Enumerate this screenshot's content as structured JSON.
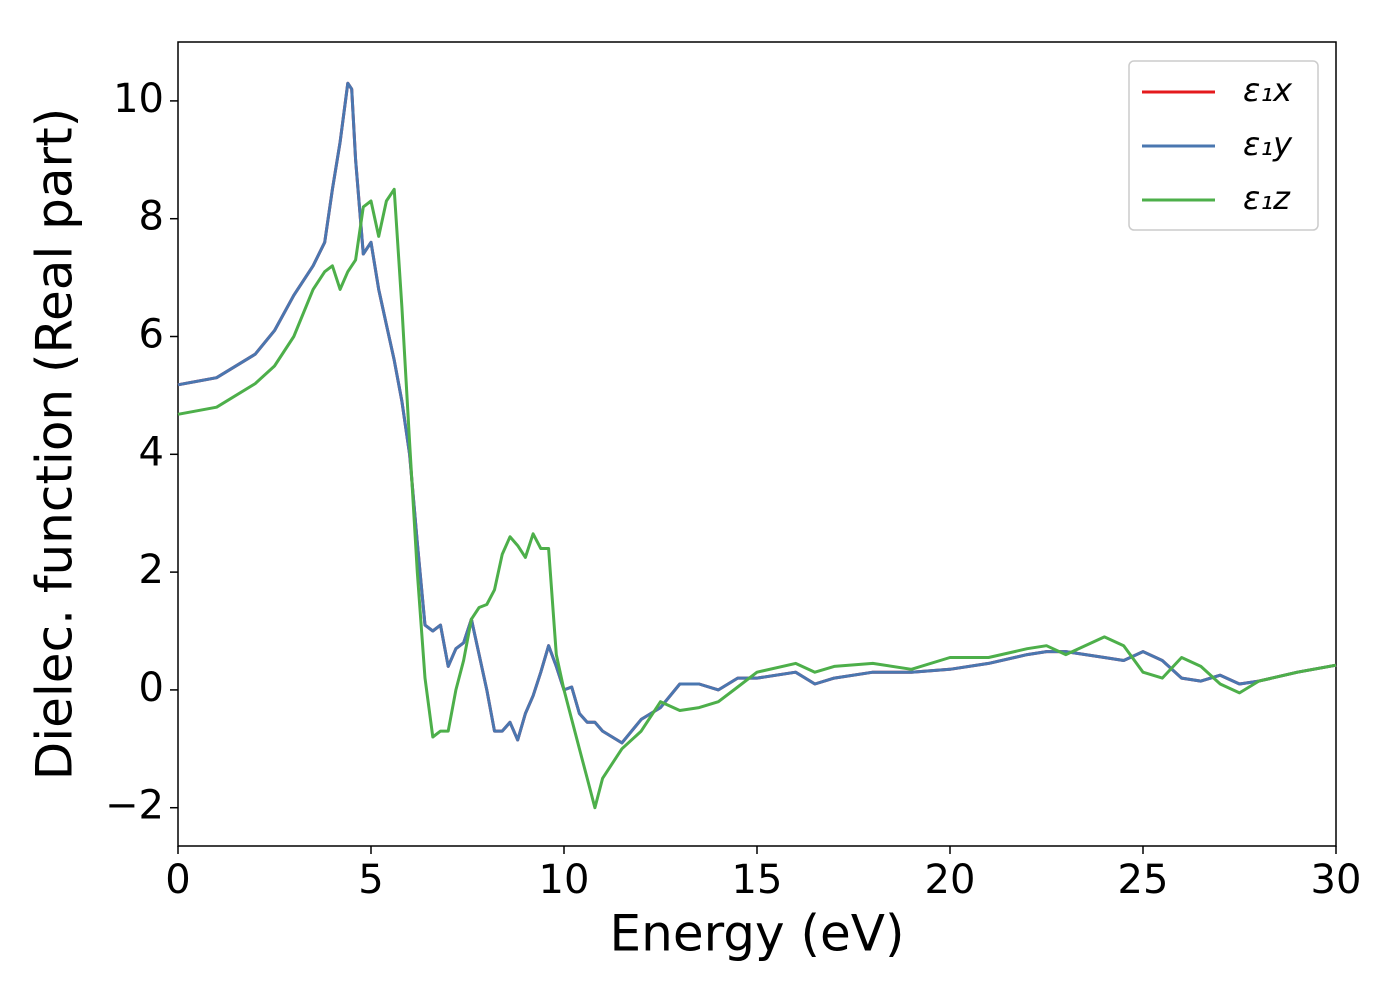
{
  "chart_data": {
    "type": "line",
    "xlabel": "Energy (eV)",
    "ylabel": "Dielec. function (Real part)",
    "x": [
      0,
      1,
      2,
      2.5,
      3,
      3.5,
      3.8,
      4,
      4.2,
      4.4,
      4.5,
      4.6,
      4.8,
      5,
      5.2,
      5.4,
      5.6,
      5.8,
      6,
      6.2,
      6.4,
      6.6,
      6.8,
      7,
      7.2,
      7.4,
      7.6,
      7.8,
      8,
      8.2,
      8.4,
      8.6,
      8.8,
      9,
      9.2,
      9.4,
      9.6,
      9.8,
      10,
      10.2,
      10.4,
      10.6,
      10.8,
      11,
      11.5,
      12,
      12.5,
      13,
      13.5,
      14,
      14.5,
      15,
      16,
      16.5,
      17,
      18,
      19,
      20,
      21,
      22,
      22.5,
      23,
      24,
      24.5,
      25,
      25.5,
      26,
      26.5,
      27,
      27.5,
      28,
      29,
      30
    ],
    "series": [
      {
        "name": "ε₁x",
        "color": "#e41a1c",
        "values": [
          5.18,
          5.3,
          5.7,
          6.1,
          6.7,
          7.2,
          7.6,
          8.5,
          9.3,
          10.3,
          10.2,
          9.0,
          7.4,
          7.6,
          6.8,
          6.2,
          5.6,
          4.9,
          4.0,
          2.5,
          1.1,
          1.0,
          1.1,
          0.4,
          0.7,
          0.8,
          1.2,
          0.6,
          0.0,
          -0.7,
          -0.7,
          -0.55,
          -0.85,
          -0.4,
          -0.1,
          0.3,
          0.75,
          0.4,
          0.0,
          0.05,
          -0.4,
          -0.55,
          -0.55,
          -0.7,
          -0.9,
          -0.5,
          -0.3,
          0.1,
          0.1,
          0.0,
          0.2,
          0.2,
          0.3,
          0.1,
          0.2,
          0.3,
          0.3,
          0.35,
          0.45,
          0.6,
          0.65,
          0.65,
          0.55,
          0.5,
          0.65,
          0.5,
          0.2,
          0.15,
          0.25,
          0.1,
          0.15,
          0.3,
          0.42
        ]
      },
      {
        "name": "ε₁y",
        "color": "#4a77b0",
        "values": [
          5.18,
          5.3,
          5.7,
          6.1,
          6.7,
          7.2,
          7.6,
          8.5,
          9.3,
          10.3,
          10.2,
          9.0,
          7.4,
          7.6,
          6.8,
          6.2,
          5.6,
          4.9,
          4.0,
          2.5,
          1.1,
          1.0,
          1.1,
          0.4,
          0.7,
          0.8,
          1.2,
          0.6,
          0.0,
          -0.7,
          -0.7,
          -0.55,
          -0.85,
          -0.4,
          -0.1,
          0.3,
          0.75,
          0.4,
          0.0,
          0.05,
          -0.4,
          -0.55,
          -0.55,
          -0.7,
          -0.9,
          -0.5,
          -0.3,
          0.1,
          0.1,
          0.0,
          0.2,
          0.2,
          0.3,
          0.1,
          0.2,
          0.3,
          0.3,
          0.35,
          0.45,
          0.6,
          0.65,
          0.65,
          0.55,
          0.5,
          0.65,
          0.5,
          0.2,
          0.15,
          0.25,
          0.1,
          0.15,
          0.3,
          0.42
        ]
      },
      {
        "name": "ε₁z",
        "color": "#4daf4a",
        "values": [
          4.68,
          4.8,
          5.2,
          5.5,
          6.0,
          6.8,
          7.1,
          7.2,
          6.8,
          7.1,
          7.2,
          7.3,
          8.2,
          8.3,
          7.7,
          8.3,
          8.5,
          6.5,
          4.2,
          2.0,
          0.2,
          -0.8,
          -0.7,
          -0.7,
          0.0,
          0.5,
          1.2,
          1.4,
          1.45,
          1.7,
          2.3,
          2.6,
          2.45,
          2.25,
          2.65,
          2.4,
          2.4,
          0.6,
          0.0,
          -0.5,
          -1.0,
          -1.5,
          -2.0,
          -1.5,
          -1.0,
          -0.7,
          -0.2,
          -0.35,
          -0.3,
          -0.2,
          0.05,
          0.3,
          0.45,
          0.3,
          0.4,
          0.45,
          0.35,
          0.55,
          0.55,
          0.7,
          0.75,
          0.6,
          0.9,
          0.75,
          0.3,
          0.2,
          0.55,
          0.4,
          0.1,
          -0.05,
          0.15,
          0.3,
          0.42
        ]
      }
    ],
    "xlim": [
      0,
      30
    ],
    "ylim": [
      -2.65,
      11
    ],
    "xticks": [
      0,
      5,
      10,
      15,
      20,
      25,
      30
    ],
    "yticks": [
      {
        "value": -2,
        "label": "−2"
      },
      0,
      2,
      4,
      6,
      8,
      10
    ],
    "legend": "upper right",
    "grid": false
  }
}
